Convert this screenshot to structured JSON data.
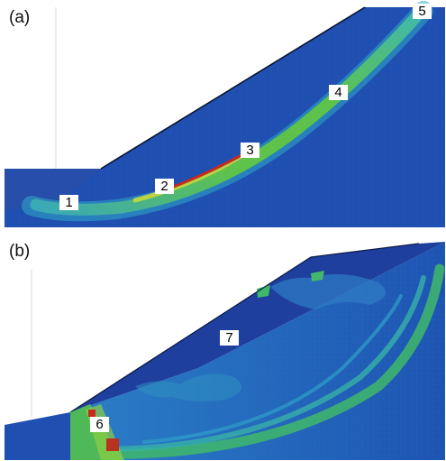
{
  "panel_a": {
    "letter": "(a)",
    "markers": [
      "1",
      "2",
      "3",
      "4",
      "5"
    ]
  },
  "panel_b": {
    "letter": "(b)",
    "markers": [
      "6",
      "7"
    ]
  },
  "colors": {
    "background": "#ffffff",
    "slope_base": "#1f4fb0",
    "slope_deep": "#1a3f94",
    "band_cyan": "#2fa9c9",
    "band_green": "#5ec34a",
    "band_yellow": "#c9d93a",
    "band_red": "#c62a1c"
  }
}
